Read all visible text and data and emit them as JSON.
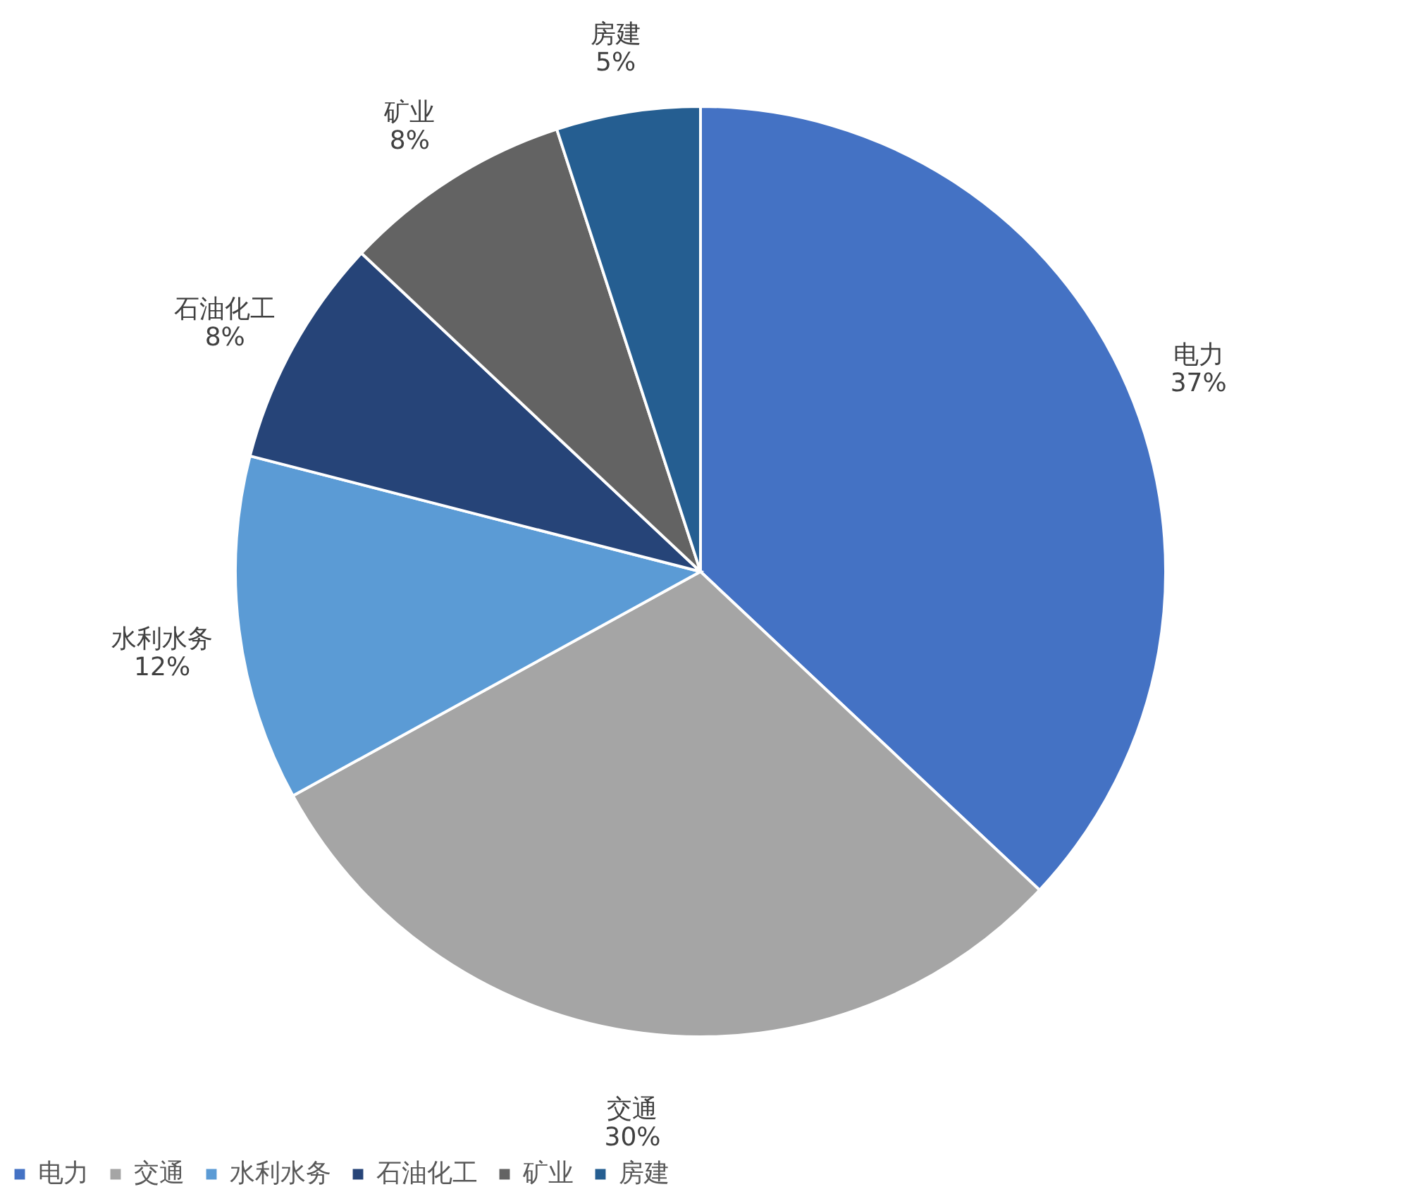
{
  "chart_data": {
    "type": "pie",
    "categories": [
      "电力",
      "交通",
      "水利水务",
      "石油化工",
      "矿业",
      "房建"
    ],
    "values": [
      37,
      30,
      12,
      8,
      8,
      5
    ],
    "value_labels": [
      "37%",
      "30%",
      "12%",
      "8%",
      "8%",
      "5%"
    ],
    "colors": [
      "#4472c4",
      "#a5a5a5",
      "#5b9bd5",
      "#264478",
      "#636363",
      "#255e91"
    ],
    "legend": "bottom"
  }
}
